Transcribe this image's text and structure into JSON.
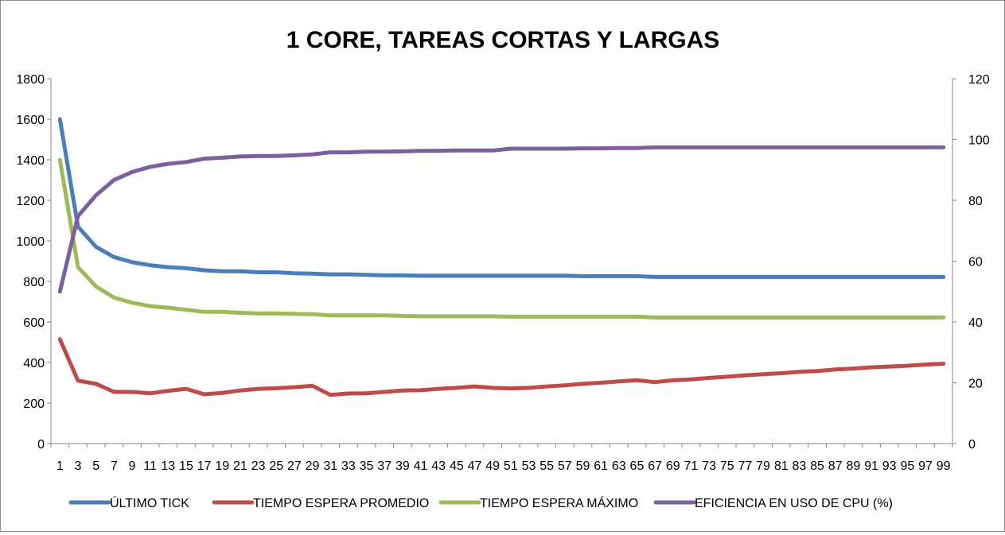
{
  "chart_data": {
    "type": "line",
    "title": "1 CORE, TAREAS CORTAS Y LARGAS",
    "x": [
      1,
      3,
      5,
      7,
      9,
      11,
      13,
      15,
      17,
      19,
      21,
      23,
      25,
      27,
      29,
      31,
      33,
      35,
      37,
      39,
      41,
      43,
      45,
      47,
      49,
      51,
      53,
      55,
      57,
      59,
      61,
      63,
      65,
      67,
      69,
      71,
      73,
      75,
      77,
      79,
      81,
      83,
      85,
      87,
      89,
      91,
      93,
      95,
      97,
      99
    ],
    "x_tick_labels": [
      "1",
      "3",
      "5",
      "7",
      "9",
      "11",
      "13",
      "15",
      "17",
      "19",
      "21",
      "23",
      "25",
      "27",
      "29",
      "31",
      "33",
      "35",
      "37",
      "39",
      "41",
      "43",
      "45",
      "47",
      "49",
      "51",
      "53",
      "55",
      "57",
      "59",
      "61",
      "63",
      "65",
      "67",
      "69",
      "71",
      "73",
      "75",
      "77",
      "79",
      "81",
      "83",
      "85",
      "87",
      "89",
      "91",
      "93",
      "95",
      "97",
      "99"
    ],
    "y_left": {
      "lim": [
        0,
        1800
      ],
      "ticks": [
        0,
        200,
        400,
        600,
        800,
        1000,
        1200,
        1400,
        1600,
        1800
      ]
    },
    "y_right": {
      "lim": [
        0,
        120
      ],
      "ticks": [
        0,
        20,
        40,
        60,
        80,
        100,
        120
      ]
    },
    "grid": false,
    "legend_position": "bottom",
    "series": [
      {
        "name": "ÚLTIMO TICK",
        "color": "#4a7ebb",
        "axis": "left",
        "values": [
          1600,
          1070,
          970,
          920,
          895,
          880,
          870,
          865,
          855,
          850,
          850,
          845,
          845,
          840,
          838,
          835,
          835,
          832,
          830,
          830,
          828,
          828,
          828,
          828,
          828,
          828,
          828,
          828,
          828,
          826,
          826,
          826,
          826,
          822,
          822,
          822,
          822,
          822,
          822,
          822,
          822,
          822,
          822,
          822,
          822,
          822,
          822,
          822,
          822,
          822
        ]
      },
      {
        "name": "TIEMPO ESPERA PROMEDIO",
        "color": "#be4b48",
        "axis": "left",
        "values": [
          515,
          310,
          295,
          255,
          255,
          248,
          260,
          270,
          243,
          250,
          262,
          270,
          273,
          278,
          285,
          240,
          247,
          248,
          255,
          262,
          263,
          270,
          275,
          282,
          275,
          272,
          275,
          282,
          287,
          295,
          300,
          307,
          312,
          303,
          312,
          317,
          324,
          330,
          337,
          342,
          347,
          354,
          358,
          366,
          370,
          376,
          380,
          384,
          390,
          394
        ]
      },
      {
        "name": "TIEMPO ESPERA MÁXIMO",
        "color": "#9bbb59",
        "axis": "left",
        "values": [
          1400,
          870,
          775,
          720,
          695,
          678,
          670,
          660,
          650,
          650,
          645,
          642,
          642,
          640,
          638,
          632,
          632,
          632,
          632,
          630,
          628,
          628,
          628,
          628,
          628,
          626,
          626,
          626,
          626,
          626,
          626,
          626,
          626,
          622,
          622,
          622,
          622,
          622,
          622,
          622,
          622,
          622,
          622,
          622,
          622,
          622,
          622,
          622,
          622,
          622
        ]
      },
      {
        "name": "EFICIENCIA EN USO DE CPU (%)",
        "color": "#7d5fa0",
        "axis": "right",
        "values": [
          50,
          74.8,
          81.7,
          86.7,
          89.3,
          91,
          92,
          92.6,
          93.7,
          94,
          94.4,
          94.6,
          94.6,
          94.8,
          95.1,
          95.8,
          95.8,
          96,
          96,
          96.1,
          96.3,
          96.3,
          96.4,
          96.4,
          96.4,
          97,
          97,
          97,
          97,
          97.1,
          97.1,
          97.2,
          97.2,
          97.4,
          97.4,
          97.4,
          97.4,
          97.4,
          97.4,
          97.4,
          97.4,
          97.4,
          97.4,
          97.4,
          97.4,
          97.4,
          97.4,
          97.4,
          97.4,
          97.4
        ]
      }
    ]
  }
}
